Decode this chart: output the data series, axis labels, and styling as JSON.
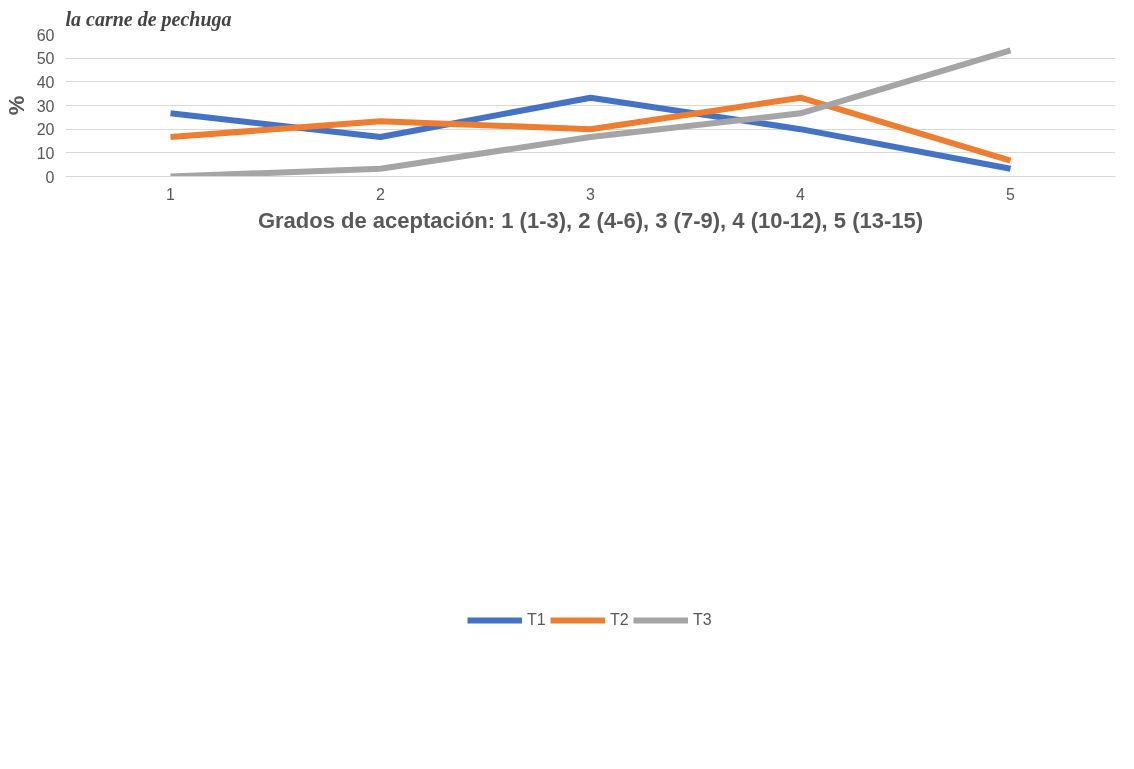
{
  "chart_data": {
    "type": "line",
    "title": "la carne de pechuga",
    "xlabel": "Grados de aceptación: 1 (1-3), 2 (4-6), 3 (7-9), 4 (10-12), 5 (13-15)",
    "ylabel": "%",
    "categories": [
      "1",
      "2",
      "3",
      "4",
      "5"
    ],
    "series": [
      {
        "name": "T1",
        "color": "#4472c4",
        "values": [
          26.7,
          16.7,
          33.3,
          20,
          3.3
        ]
      },
      {
        "name": "T2",
        "color": "#ed7d31",
        "values": [
          16.7,
          23.3,
          20,
          33.3,
          6.7
        ]
      },
      {
        "name": "T3",
        "color": "#a5a5a5",
        "values": [
          0,
          3.3,
          16.7,
          26.7,
          53.3
        ]
      }
    ],
    "ylim": [
      0,
      60
    ],
    "yticks": [
      0,
      10,
      20,
      30,
      40,
      50,
      60
    ],
    "grid": "y",
    "legend": "bottom",
    "marker": "none",
    "line_style": "solid"
  }
}
